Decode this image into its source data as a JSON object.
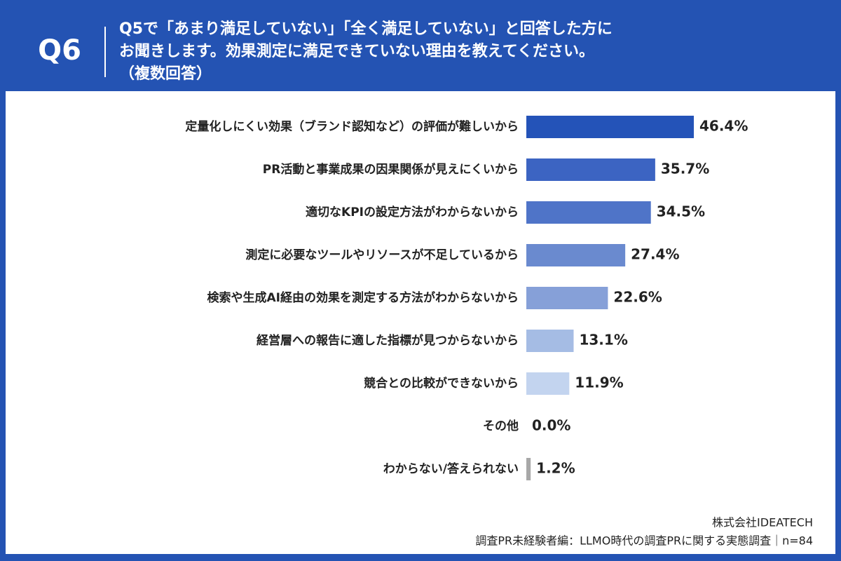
{
  "question_number": "Q6",
  "chart_data": {
    "type": "bar",
    "orientation": "horizontal",
    "title": [
      "Q5で「あまり満足していない」「全く満足していない」と回答した方に",
      "お聞きします。効果測定に満足できていない理由を教えてください。",
      "（複数回答）"
    ],
    "categories": [
      "定量化しにくい効果（ブランド認知など）の評価が難しいから",
      "PR活動と事業成果の因果関係が見えにくいから",
      "適切なKPIの設定方法がわからないから",
      "測定に必要なツールやリソースが不足しているから",
      "検索や生成AI経由の効果を測定する方法がわからないから",
      "経営層への報告に適した指標が見つからないから",
      "競合との比較ができないから",
      "その他",
      "わからない/答えられない"
    ],
    "values": [
      46.4,
      35.7,
      34.5,
      27.4,
      22.6,
      13.1,
      11.9,
      0.0,
      1.2
    ],
    "value_labels": [
      "46.4%",
      "35.7%",
      "34.5%",
      "27.4%",
      "22.6%",
      "13.1%",
      "11.9%",
      "0.0%",
      "1.2%"
    ],
    "colors": [
      "#2453b8",
      "#3c64c2",
      "#4f74c8",
      "#6a8acf",
      "#86a0d8",
      "#a5bce4",
      "#c3d4ef",
      "#a8a8a8",
      "#a8a8a8"
    ]
  },
  "source": [
    "株式会社IDEATECH",
    "調査PR未経験者編：LLMO時代の調査PRに関する実態調査｜n=84"
  ]
}
